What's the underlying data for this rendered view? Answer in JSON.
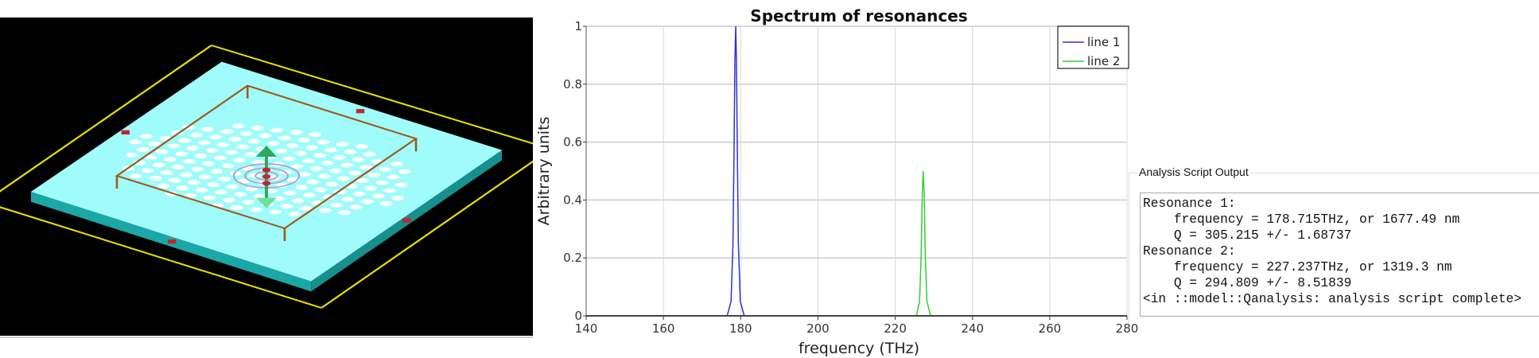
{
  "scene": {
    "colors": {
      "background": "#000000",
      "boundary": "#e6e000",
      "slab_top": "#9ffcfb",
      "slab_side": "#1aa7a5",
      "monitor_frame": "#a0581a",
      "holes": "#ffffff",
      "dipole": "#2ea85a",
      "monitor_points": "#c02830",
      "rings": "#b0a0d0"
    }
  },
  "chart_data": {
    "type": "line",
    "title": "Spectrum of resonances",
    "xlabel": "frequency (THz)",
    "ylabel": "Arbitrary units",
    "xlim": [
      140,
      280
    ],
    "ylim": [
      0,
      1
    ],
    "xticks": [
      140,
      160,
      180,
      200,
      220,
      240,
      260,
      280
    ],
    "xtick_labels": [
      "140",
      "160",
      "180",
      "200",
      "220",
      "240",
      "260",
      "280"
    ],
    "yticks": [
      0,
      0.2,
      0.4,
      0.6,
      0.8,
      1
    ],
    "ytick_labels": [
      "0",
      "0.2",
      "0.4",
      "0.6",
      "0.8",
      "1"
    ],
    "grid": true,
    "legend_position": "top-right",
    "series": [
      {
        "name": "line 1",
        "color": "#3030d0",
        "x": [
          140,
          176.5,
          177.5,
          178.0,
          178.3,
          178.5,
          178.715,
          178.9,
          179.1,
          179.4,
          179.9,
          180.9,
          280
        ],
        "y": [
          0,
          0,
          0.05,
          0.25,
          0.6,
          0.88,
          1,
          0.88,
          0.6,
          0.25,
          0.05,
          0,
          0
        ]
      },
      {
        "name": "line 2",
        "color": "#30d030",
        "x": [
          140,
          225.5,
          226.3,
          226.7,
          227.0,
          227.237,
          227.5,
          227.8,
          228.2,
          229.2,
          280
        ],
        "y": [
          0,
          0,
          0.05,
          0.2,
          0.42,
          0.5,
          0.42,
          0.2,
          0.05,
          0,
          0
        ]
      }
    ]
  },
  "output": {
    "title": "Analysis Script Output",
    "lines": [
      "Resonance 1:",
      "    frequency = 178.715THz, or 1677.49 nm",
      "    Q = 305.215 +/- 1.68737",
      "Resonance 2:",
      "    frequency = 227.237THz, or 1319.3 nm",
      "    Q = 294.809 +/- 8.51839",
      "<in ::model::Qanalysis: analysis script complete>"
    ]
  }
}
